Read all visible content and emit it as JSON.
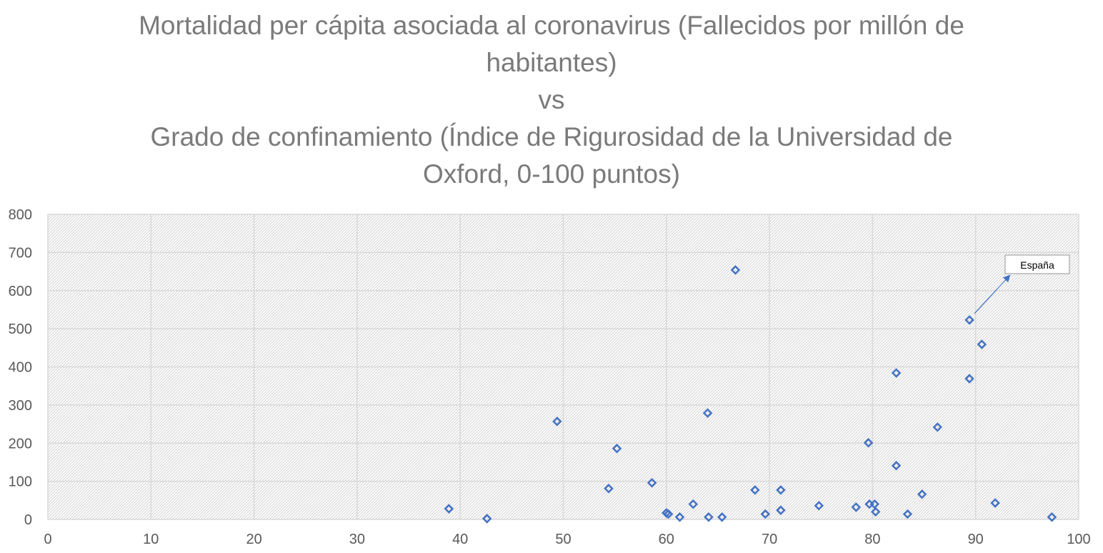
{
  "chart_data": {
    "type": "scatter",
    "title_lines": [
      "Mortalidad per cápita asociada al coronavirus (Fallecidos por millón de",
      "habitantes)",
      "vs",
      "Grado de confinamiento (Índice de Rigurosidad de la Universidad de",
      "Oxford, 0-100 puntos)"
    ],
    "xlabel": "",
    "ylabel": "",
    "xlim": [
      0,
      100
    ],
    "ylim": [
      0,
      800
    ],
    "xticks": [
      0,
      10,
      20,
      30,
      40,
      50,
      60,
      70,
      80,
      90,
      100
    ],
    "yticks": [
      0,
      100,
      200,
      300,
      400,
      500,
      600,
      700,
      800
    ],
    "grid": true,
    "marker": "diamond-open",
    "marker_color": "#4472c4",
    "points": [
      {
        "x": 38.9,
        "y": 28
      },
      {
        "x": 42.6,
        "y": 2
      },
      {
        "x": 49.4,
        "y": 257
      },
      {
        "x": 54.4,
        "y": 81
      },
      {
        "x": 55.2,
        "y": 186
      },
      {
        "x": 58.6,
        "y": 96
      },
      {
        "x": 60.0,
        "y": 17
      },
      {
        "x": 60.2,
        "y": 14
      },
      {
        "x": 61.3,
        "y": 6
      },
      {
        "x": 62.6,
        "y": 40
      },
      {
        "x": 64.0,
        "y": 279
      },
      {
        "x": 64.1,
        "y": 6
      },
      {
        "x": 65.4,
        "y": 6
      },
      {
        "x": 66.7,
        "y": 654
      },
      {
        "x": 68.6,
        "y": 77
      },
      {
        "x": 69.6,
        "y": 14
      },
      {
        "x": 71.1,
        "y": 77
      },
      {
        "x": 71.1,
        "y": 24
      },
      {
        "x": 74.8,
        "y": 36
      },
      {
        "x": 78.4,
        "y": 32
      },
      {
        "x": 79.6,
        "y": 201
      },
      {
        "x": 79.7,
        "y": 40
      },
      {
        "x": 80.2,
        "y": 40
      },
      {
        "x": 80.3,
        "y": 20
      },
      {
        "x": 82.3,
        "y": 384
      },
      {
        "x": 82.3,
        "y": 141
      },
      {
        "x": 83.4,
        "y": 14
      },
      {
        "x": 84.8,
        "y": 66
      },
      {
        "x": 86.3,
        "y": 242
      },
      {
        "x": 89.4,
        "y": 523
      },
      {
        "x": 89.4,
        "y": 369
      },
      {
        "x": 90.6,
        "y": 459
      },
      {
        "x": 91.9,
        "y": 43
      },
      {
        "x": 97.4,
        "y": 6
      }
    ],
    "annotations": [
      {
        "text": "España",
        "point_index": 29
      }
    ]
  }
}
